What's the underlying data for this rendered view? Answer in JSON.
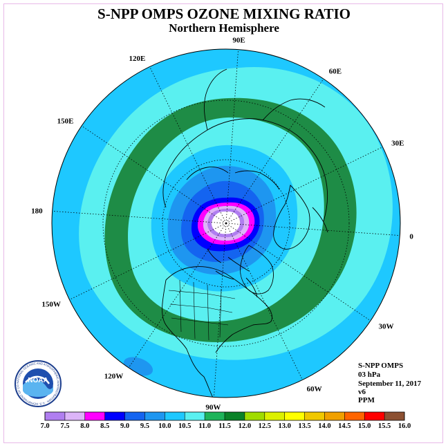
{
  "header": {
    "title": "S-NPP OMPS OZONE MIXING RATIO",
    "subtitle": "Northern Hemisphere"
  },
  "map": {
    "projection": "north polar stereographic",
    "longitude_labels": [
      {
        "text": "90E",
        "lon": 90
      },
      {
        "text": "60E",
        "lon": 60
      },
      {
        "text": "30E",
        "lon": 30
      },
      {
        "text": "0",
        "lon": 0
      },
      {
        "text": "30W",
        "lon": -30
      },
      {
        "text": "60W",
        "lon": -60
      },
      {
        "text": "90W",
        "lon": -90
      },
      {
        "text": "120W",
        "lon": -120
      },
      {
        "text": "150W",
        "lon": -150
      },
      {
        "text": "180",
        "lon": 180
      },
      {
        "text": "150E",
        "lon": 150
      },
      {
        "text": "120E",
        "lon": 120
      }
    ],
    "latitude_circles": [
      30,
      60
    ]
  },
  "info": {
    "instrument": "S-NPP OMPS",
    "level": "03 hPa",
    "date": "September 11, 2017",
    "version": "v6",
    "units": "PPM"
  },
  "logo": {
    "text": "NOAA",
    "ring_text": "NATIONAL OCEANIC AND ATMOSPHERIC ADMINISTRATION · U.S. DEPARTMENT OF COMMERCE"
  },
  "colorbar": {
    "ticks": [
      "7.0",
      "7.5",
      "8.0",
      "8.5",
      "9.0",
      "9.5",
      "10.0",
      "10.5",
      "11.0",
      "11.5",
      "12.0",
      "12.5",
      "13.0",
      "13.5",
      "14.0",
      "14.5",
      "15.0",
      "15.5",
      "16.0"
    ],
    "colors": [
      "#b07ef0",
      "#dcb4f8",
      "#ff00ff",
      "#0000ff",
      "#1464f0",
      "#1e96f0",
      "#1ec8ff",
      "#5af0f0",
      "#1eb45a",
      "#0a8228",
      "#a0dc00",
      "#dcf000",
      "#ffff00",
      "#f0c800",
      "#f0a000",
      "#ff6400",
      "#ff0000",
      "#8c5032"
    ]
  },
  "chart_data": {
    "type": "heatmap",
    "variable": "ozone mixing ratio",
    "units": "PPM",
    "level": "03 hPa",
    "date": "September 11, 2017",
    "pole_value_approx": "< 7.0",
    "contour_bands_lat_approx": [
      {
        "range": "11.0-11.5",
        "lat_band": [
          36,
          43
        ]
      },
      {
        "range": "10.5-11.0",
        "lat_band": [
          43,
          55
        ]
      },
      {
        "range": "10.0-10.5",
        "lat_band": [
          55,
          62
        ]
      },
      {
        "range": "9.5-10.0",
        "lat_band": [
          62,
          68
        ]
      },
      {
        "range": "9.0-9.5",
        "lat_band": [
          68,
          74
        ]
      },
      {
        "range": "8.5-9.0",
        "lat_band": [
          74,
          79
        ]
      },
      {
        "range": "8.0-8.5",
        "lat_band": [
          79,
          83
        ]
      },
      {
        "range": "7.5-8.0",
        "lat_band": [
          83,
          85
        ]
      },
      {
        "range": "7.0-7.5",
        "lat_band": [
          85,
          87
        ]
      }
    ]
  }
}
